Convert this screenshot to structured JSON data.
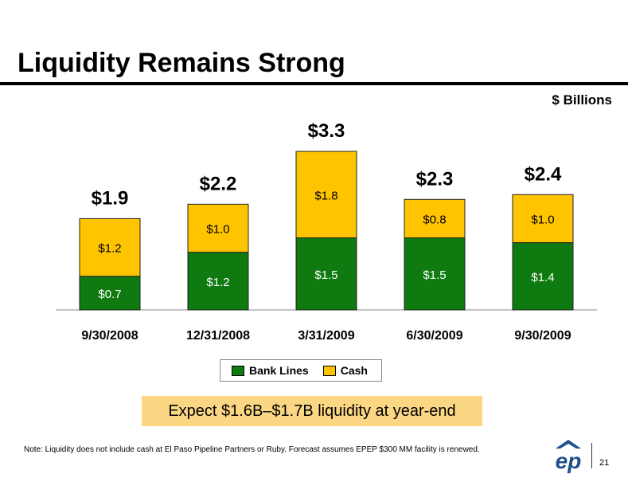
{
  "header": {
    "title": "Liquidity Remains Strong",
    "units": "$ Billions"
  },
  "chart_data": {
    "type": "bar",
    "stacked": true,
    "categories": [
      "9/30/2008",
      "12/31/2008",
      "3/31/2009",
      "6/30/2009",
      "9/30/2009"
    ],
    "series": [
      {
        "name": "Bank Lines",
        "values": [
          0.7,
          1.2,
          1.5,
          1.5,
          1.4
        ],
        "labels": [
          "$0.7",
          "$1.2",
          "$1.5",
          "$1.5",
          "$1.4"
        ],
        "color": "#0f7a10"
      },
      {
        "name": "Cash",
        "values": [
          1.2,
          1.0,
          1.8,
          0.8,
          1.0
        ],
        "labels": [
          "$1.2",
          "$1.0",
          "$1.8",
          "$0.8",
          "$1.0"
        ],
        "color": "#ffc400"
      }
    ],
    "totals": [
      1.9,
      2.2,
      3.3,
      2.3,
      2.4
    ],
    "total_labels": [
      "$1.9",
      "$2.2",
      "$3.3",
      "$2.3",
      "$2.4"
    ],
    "ylim": [
      0,
      3.3
    ],
    "grid": false,
    "legend_position": "bottom"
  },
  "callout": "Expect $1.6B–$1.7B liquidity at year-end",
  "footer": {
    "note": "Note:  Liquidity does not include cash at El Paso Pipeline Partners or Ruby. Forecast assumes EPEP $300 MM facility is renewed.",
    "page_number": "21",
    "logo_text": "ep"
  }
}
